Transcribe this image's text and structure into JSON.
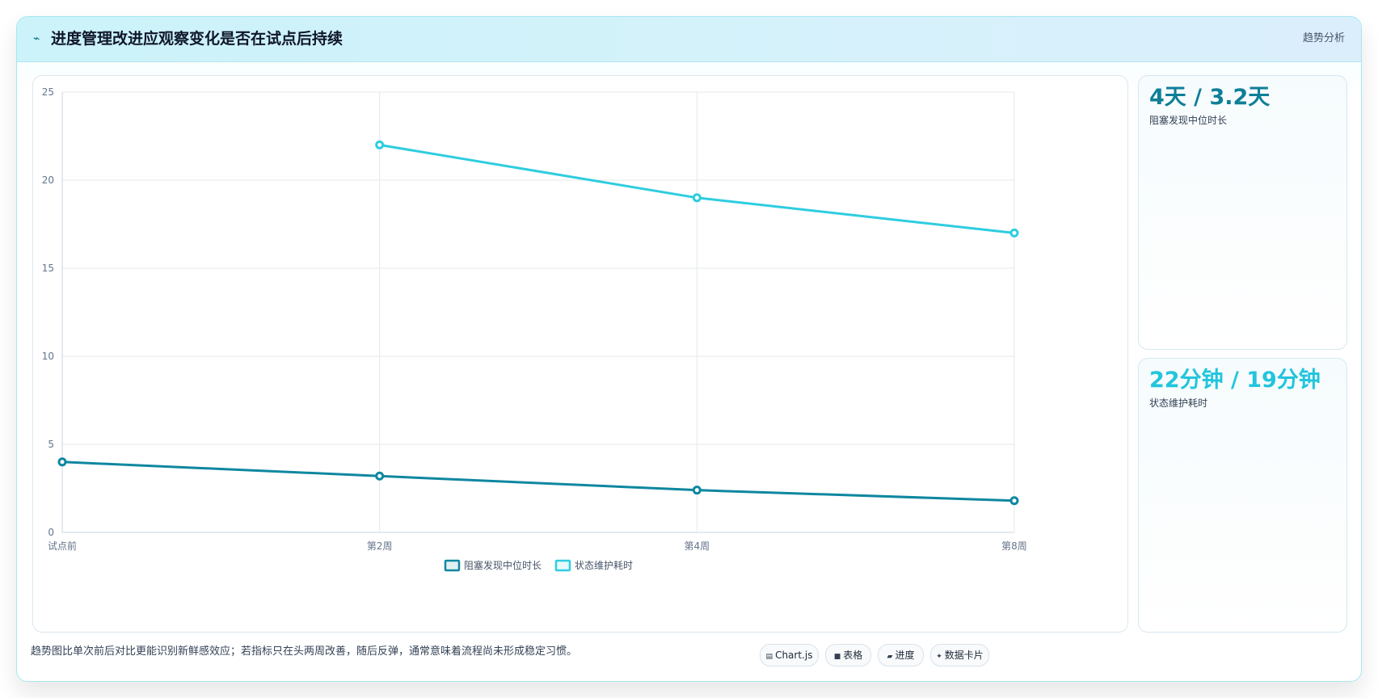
{
  "header": {
    "icon": "trend-icon",
    "title": "进度管理改进应观察变化是否在试点后持续",
    "tag": "趋势分析"
  },
  "chart_data": {
    "type": "line",
    "title": "",
    "xlabel": "",
    "ylabel": "",
    "categories": [
      "试点前",
      "第2周",
      "第4周",
      "第8周"
    ],
    "ylim": [
      0,
      25
    ],
    "yticks": [
      0,
      5,
      10,
      15,
      20,
      25
    ],
    "grid": true,
    "legend_position": "bottom",
    "series": [
      {
        "name": "阻塞发现中位时长",
        "color": "#0e87a0",
        "values": [
          4,
          3.2,
          2.4,
          1.8
        ]
      },
      {
        "name": "状态维护耗时",
        "color": "#2ecde0",
        "values": [
          null,
          22,
          19,
          17
        ]
      }
    ]
  },
  "stats": [
    {
      "value": "4天 / 3.2天",
      "label": "阻塞发现中位时长",
      "color": "#0e7f97"
    },
    {
      "value": "22分钟 / 19分钟",
      "label": "状态维护耗时",
      "color": "#22c5dc"
    }
  ],
  "footer": {
    "note": "趋势图比单次前后对比更能识别新鲜感效应；若指标只在头两周改善，随后反弹，通常意味着流程尚未形成稳定习惯。",
    "chips": [
      {
        "icon": "chart-icon",
        "glyph": "▤",
        "label": "Chart.js"
      },
      {
        "icon": "table-icon",
        "glyph": "■",
        "label": "表格"
      },
      {
        "icon": "progress-icon",
        "glyph": "▰",
        "label": "进度"
      },
      {
        "icon": "sparkle-icon",
        "glyph": "✦",
        "label": "数据卡片"
      }
    ]
  }
}
